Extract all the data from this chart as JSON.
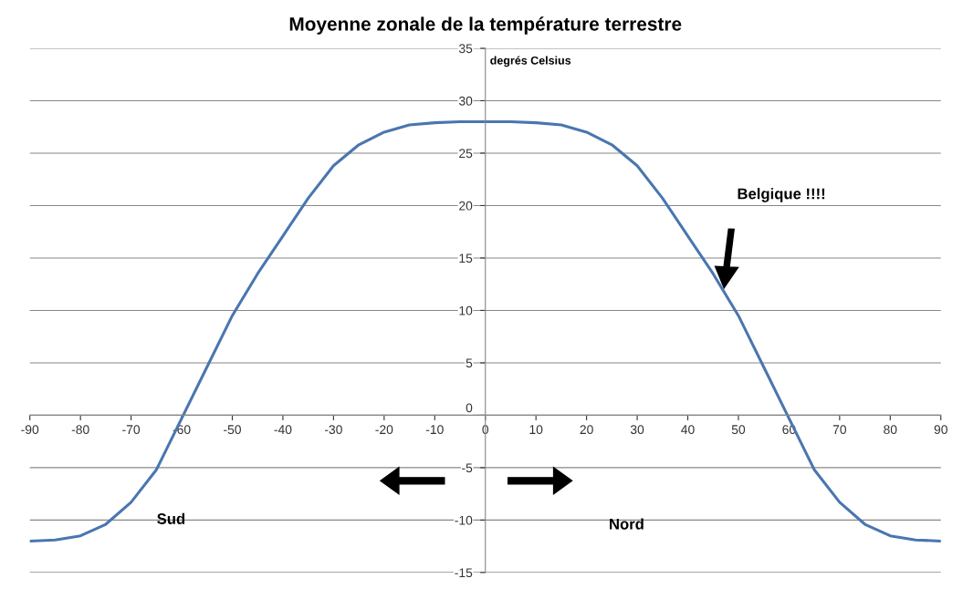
{
  "chart_data": {
    "type": "line",
    "title": "Moyenne zonale de la température terrestre",
    "x": [
      -90,
      -85,
      -80,
      -75,
      -70,
      -65,
      -60,
      -55,
      -50,
      -45,
      -40,
      -35,
      -30,
      -25,
      -20,
      -15,
      -10,
      -5,
      0,
      5,
      10,
      15,
      20,
      25,
      30,
      35,
      40,
      45,
      50,
      55,
      60,
      65,
      70,
      75,
      80,
      85,
      90
    ],
    "series": [
      {
        "color": "#4a76b0",
        "values": [
          -12.0,
          -11.9,
          -11.5,
          -10.4,
          -8.3,
          -5.2,
          -0.3,
          4.6,
          9.5,
          13.5,
          17.1,
          20.7,
          23.8,
          25.8,
          27.0,
          27.7,
          27.9,
          28.0,
          28.0,
          28.0,
          27.9,
          27.7,
          27.0,
          25.8,
          23.8,
          20.7,
          17.1,
          13.5,
          9.5,
          4.6,
          -0.3,
          -5.2,
          -8.3,
          -10.4,
          -11.5,
          -11.9,
          -12.0
        ]
      }
    ],
    "xlim": [
      -90,
      90
    ],
    "xticks": [
      -90,
      -80,
      -70,
      -60,
      -50,
      -40,
      -30,
      -20,
      -10,
      0,
      10,
      20,
      30,
      40,
      50,
      60,
      70,
      80,
      90
    ],
    "ylim": [
      -15,
      35
    ],
    "yticks": [
      -15,
      -10,
      -5,
      0,
      5,
      10,
      15,
      20,
      25,
      30,
      35
    ],
    "grid": "y",
    "legend": false,
    "marker": "none",
    "line_style": "solid",
    "annotations": [
      "degrés Celsius",
      "Belgique !!!!",
      "Sud",
      "Nord"
    ]
  }
}
